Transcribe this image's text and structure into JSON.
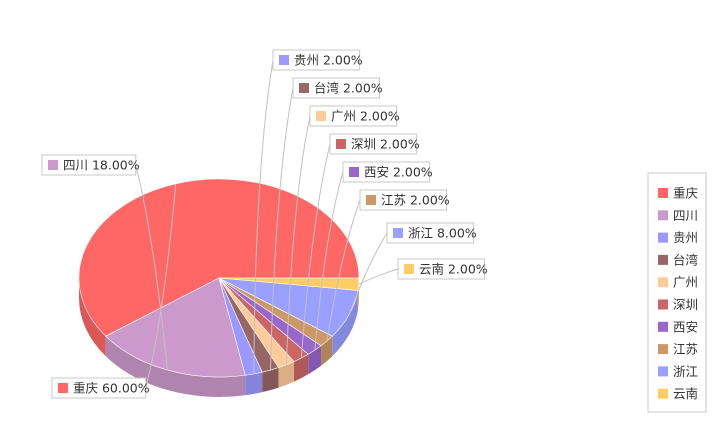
{
  "chart_data": {
    "type": "pie",
    "title": "",
    "style": "3d",
    "legend_position": "right",
    "series": [
      {
        "name": "重庆",
        "value": 60.0,
        "label": "重庆 60.00%",
        "color": "#ff6666"
      },
      {
        "name": "四川",
        "value": 18.0,
        "label": "四川 18.00%",
        "color": "#cc99cc"
      },
      {
        "name": "贵州",
        "value": 2.0,
        "label": "贵州 2.00%",
        "color": "#9999ff"
      },
      {
        "name": "台湾",
        "value": 2.0,
        "label": "台湾 2.00%",
        "color": "#996666"
      },
      {
        "name": "广州",
        "value": 2.0,
        "label": "广州 2.00%",
        "color": "#ffcc99"
      },
      {
        "name": "深圳",
        "value": 2.0,
        "label": "深圳 2.00%",
        "color": "#cc6666"
      },
      {
        "name": "西安",
        "value": 2.0,
        "label": "西安 2.00%",
        "color": "#9966cc"
      },
      {
        "name": "江苏",
        "value": 2.0,
        "label": "江苏 2.00%",
        "color": "#cc9966"
      },
      {
        "name": "浙江",
        "value": 8.0,
        "label": "浙江 8.00%",
        "color": "#99a0ff"
      },
      {
        "name": "云南",
        "value": 2.0,
        "label": "云南 2.00%",
        "color": "#ffcc66"
      }
    ]
  }
}
